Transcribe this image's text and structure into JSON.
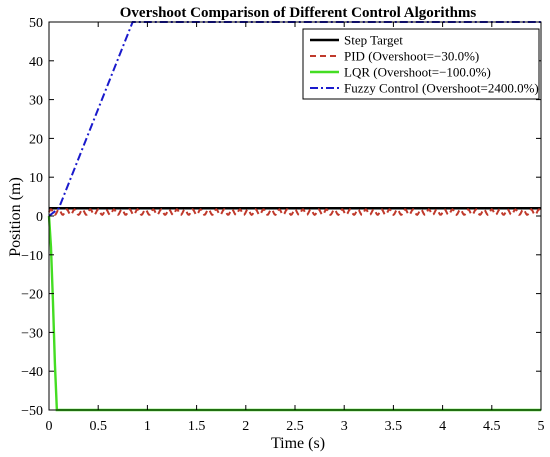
{
  "chart_data": {
    "type": "line",
    "title": "Overshoot Comparison of Different Control Algorithms",
    "xlabel": "Time (s)",
    "ylabel": "Position (m)",
    "xlim": [
      0,
      5
    ],
    "ylim": [
      -50,
      50
    ],
    "xticks": [
      0,
      0.5,
      1,
      1.5,
      2,
      2.5,
      3,
      3.5,
      4,
      4.5,
      5
    ],
    "xtick_labels": [
      "0",
      "0.5",
      "1",
      "1.5",
      "2",
      "2.5",
      "3",
      "3.5",
      "4",
      "4.5",
      "5"
    ],
    "yticks": [
      -50,
      -40,
      -30,
      -20,
      -10,
      0,
      10,
      20,
      30,
      40,
      50
    ],
    "ytick_labels": [
      "−50",
      "−40",
      "−30",
      "−20",
      "−10",
      "0",
      "10",
      "20",
      "30",
      "40",
      "50"
    ],
    "grid": false,
    "legend_position": "top-right",
    "series": [
      {
        "name": "Step Target",
        "color": "#000000",
        "style": "solid",
        "x": [
          0,
          5
        ],
        "y": [
          2,
          2
        ]
      },
      {
        "name": "PID (Overshoot=−30.0%)",
        "color": "#c0392b",
        "style": "dashed",
        "x": [
          0,
          5
        ],
        "y": [
          1,
          1
        ],
        "oscillation": {
          "amplitude": 0.7,
          "period": 0.08
        }
      },
      {
        "name": "LQR (Overshoot=−100.0%)",
        "color": "#44dd22",
        "style": "solid",
        "x": [
          0,
          0.02,
          0.04,
          0.06,
          0.08,
          5
        ],
        "y": [
          0,
          -8,
          -22,
          -38,
          -50,
          -50
        ]
      },
      {
        "name": "Fuzzy Control (Overshoot=2400.0%)",
        "color": "#1a1acc",
        "style": "dashdot",
        "x": [
          0,
          0.1,
          0.85,
          5
        ],
        "y": [
          0,
          2,
          50,
          50
        ]
      }
    ]
  }
}
